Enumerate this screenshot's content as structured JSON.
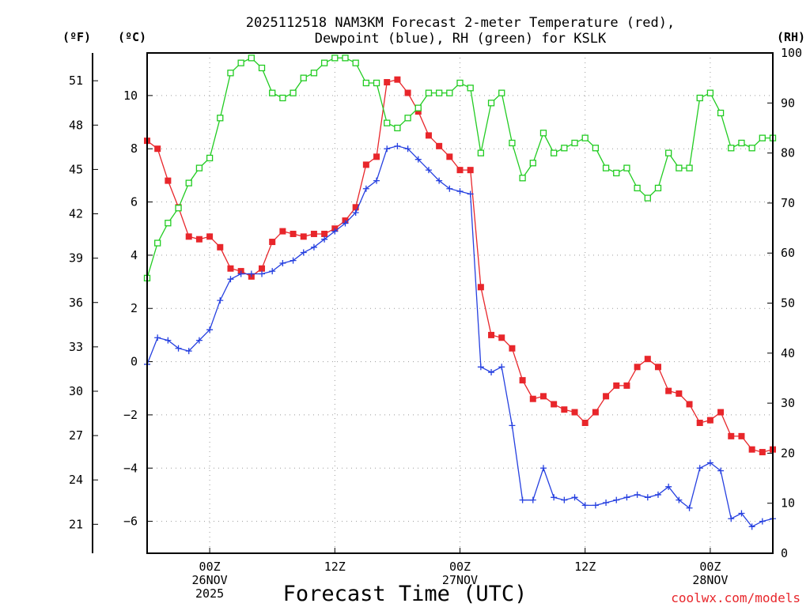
{
  "chart_data": {
    "type": "line",
    "title_lines": [
      "2025112518 NAM3KM Forecast 2-meter Temperature (red),",
      "Dewpoint (blue), RH (green) for KSLK"
    ],
    "xlabel": "Forecast Time (UTC)",
    "credit": "coolwx.com/models",
    "unit_labels": {
      "fahrenheit": "(ºF)",
      "celsius": "(ºC)",
      "rh": "(RH)"
    },
    "x_range_hours": [
      0,
      60
    ],
    "x_ticks": [
      {
        "hour": 6,
        "lines": [
          "00Z",
          "26NOV",
          "2025"
        ]
      },
      {
        "hour": 18,
        "lines": [
          "12Z"
        ]
      },
      {
        "hour": 30,
        "lines": [
          "00Z",
          "27NOV"
        ]
      },
      {
        "hour": 42,
        "lines": [
          "12Z"
        ]
      },
      {
        "hour": 54,
        "lines": [
          "00Z",
          "28NOV"
        ]
      }
    ],
    "y_left_celsius": {
      "range": [
        -7.2,
        11.6
      ],
      "ticks": [
        "10",
        "8",
        "6",
        "4",
        "2",
        "0",
        "−2",
        "−4",
        "−6"
      ]
    },
    "y_fahrenheit": {
      "ticks": [
        "51",
        "48",
        "45",
        "42",
        "39",
        "36",
        "33",
        "30",
        "27",
        "24",
        "21"
      ]
    },
    "y_right_rh": {
      "range": [
        0,
        100
      ],
      "ticks": [
        "100",
        "90",
        "80",
        "70",
        "60",
        "50",
        "40",
        "30",
        "20",
        "10",
        "0"
      ]
    },
    "grid": true,
    "series": [
      {
        "name": "Temperature (red)",
        "axis": "celsius",
        "color": "#e8262b",
        "marker": "square-filled",
        "values": [
          8.3,
          8.0,
          6.8,
          5.8,
          4.7,
          4.6,
          4.7,
          4.3,
          3.5,
          3.4,
          3.2,
          3.5,
          4.5,
          4.9,
          4.8,
          4.7,
          4.8,
          4.8,
          5.0,
          5.3,
          5.8,
          7.4,
          7.7,
          10.5,
          10.6,
          10.1,
          9.4,
          8.5,
          8.1,
          7.7,
          7.2,
          7.2,
          2.8,
          1.0,
          0.9,
          0.5,
          -0.7,
          -1.4,
          -1.3,
          -1.6,
          -1.8,
          -1.9,
          -2.3,
          -1.9,
          -1.3,
          -0.9,
          -0.9,
          -0.2,
          0.1,
          -0.2,
          -1.1,
          -1.2,
          -1.6,
          -2.3,
          -2.2,
          -1.9,
          -2.8,
          -2.8,
          -3.3,
          -3.4,
          -3.3
        ]
      },
      {
        "name": "Dewpoint (blue)",
        "axis": "celsius",
        "color": "#2640e0",
        "marker": "plus",
        "values": [
          -0.1,
          0.9,
          0.8,
          0.5,
          0.4,
          0.8,
          1.2,
          2.3,
          3.1,
          3.3,
          3.3,
          3.3,
          3.4,
          3.7,
          3.8,
          4.1,
          4.3,
          4.6,
          4.9,
          5.2,
          5.6,
          6.5,
          6.8,
          8.0,
          8.1,
          8.0,
          7.6,
          7.2,
          6.8,
          6.5,
          6.4,
          6.3,
          -0.2,
          -0.4,
          -0.2,
          -2.4,
          -5.2,
          -5.2,
          -4.0,
          -5.1,
          -5.2,
          -5.1,
          -5.4,
          -5.4,
          -5.3,
          -5.2,
          -5.1,
          -5.0,
          -5.1,
          -5.0,
          -4.7,
          -5.2,
          -5.5,
          -4.0,
          -3.8,
          -4.1,
          -5.9,
          -5.7,
          -6.2,
          -6.0,
          -5.9
        ]
      },
      {
        "name": "RH (green)",
        "axis": "rh",
        "color": "#22cc22",
        "marker": "square-open",
        "values": [
          55,
          62,
          66,
          69,
          74,
          77,
          79,
          87,
          96,
          98,
          99,
          97,
          92,
          91,
          92,
          95,
          96,
          98,
          99,
          99,
          98,
          94,
          94,
          86,
          85,
          87,
          89,
          92,
          92,
          92,
          94,
          93,
          80,
          90,
          92,
          82,
          75,
          78,
          84,
          80,
          81,
          82,
          83,
          81,
          77,
          76,
          77,
          73,
          71,
          73,
          80,
          77,
          77,
          91,
          92,
          88,
          81,
          82,
          81,
          83,
          83
        ]
      }
    ]
  }
}
